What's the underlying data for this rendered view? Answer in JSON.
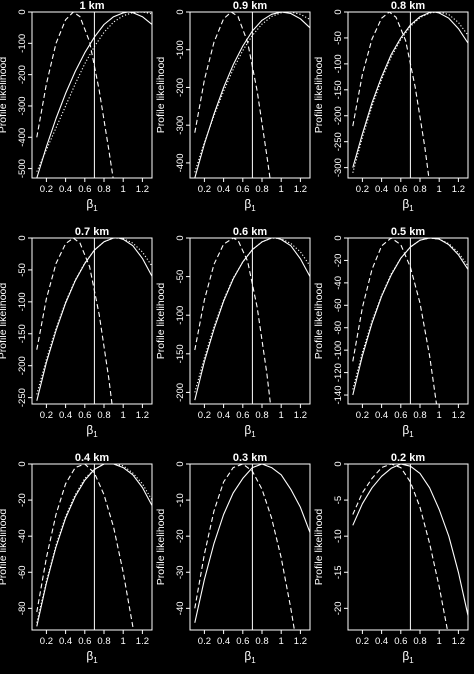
{
  "chart_data": [
    {
      "type": "line",
      "title": "1 km",
      "xlabel": "β",
      "xlabel_sub": "1",
      "ylabel": "Profile likelihood",
      "xlim": [
        0.05,
        1.3
      ],
      "ylim": [
        -530,
        0
      ],
      "xticks": [
        0.2,
        0.4,
        0.6,
        0.8,
        1.0,
        1.2
      ],
      "yticks": [
        0,
        -100,
        -200,
        -300,
        -400,
        -500
      ],
      "vline": 0.7,
      "series": [
        {
          "style": "dashed",
          "x": [
            0.1,
            0.2,
            0.3,
            0.4,
            0.48,
            0.55,
            0.65,
            0.75,
            0.85,
            0.95
          ],
          "values": [
            -400,
            -230,
            -100,
            -25,
            0,
            -15,
            -95,
            -250,
            -440,
            -640
          ]
        },
        {
          "style": "solid",
          "x": [
            0.1,
            0.2,
            0.3,
            0.4,
            0.5,
            0.6,
            0.7,
            0.8,
            0.9,
            1.0,
            1.05,
            1.1,
            1.2,
            1.3
          ],
          "values": [
            -530,
            -430,
            -340,
            -260,
            -190,
            -130,
            -80,
            -40,
            -15,
            -3,
            0,
            -2,
            -15,
            -40
          ]
        },
        {
          "style": "dotted",
          "x": [
            0.1,
            0.2,
            0.3,
            0.4,
            0.5,
            0.6,
            0.7,
            0.8,
            0.9,
            1.0,
            1.1,
            1.2,
            1.3
          ],
          "values": [
            -510,
            -440,
            -370,
            -300,
            -230,
            -165,
            -110,
            -65,
            -32,
            -12,
            -2,
            0,
            -6
          ]
        }
      ]
    },
    {
      "type": "line",
      "title": "0.9 km",
      "xlabel": "β",
      "xlabel_sub": "1",
      "ylabel": "Profile likelihood",
      "xlim": [
        0.05,
        1.3
      ],
      "ylim": [
        -440,
        0
      ],
      "xticks": [
        0.2,
        0.4,
        0.6,
        0.8,
        1.0,
        1.2
      ],
      "yticks": [
        0,
        -100,
        -200,
        -300,
        -400
      ],
      "vline": 0.7,
      "series": [
        {
          "style": "dashed",
          "x": [
            0.1,
            0.2,
            0.3,
            0.4,
            0.48,
            0.55,
            0.65,
            0.75,
            0.85,
            0.95
          ],
          "values": [
            -320,
            -180,
            -80,
            -18,
            0,
            -12,
            -80,
            -210,
            -380,
            -560
          ]
        },
        {
          "style": "solid",
          "x": [
            0.1,
            0.2,
            0.3,
            0.4,
            0.5,
            0.6,
            0.7,
            0.8,
            0.9,
            1.0,
            1.1,
            1.2,
            1.3
          ],
          "values": [
            -440,
            -350,
            -270,
            -200,
            -140,
            -90,
            -50,
            -22,
            -6,
            0,
            -4,
            -18,
            -42
          ]
        },
        {
          "style": "dotted",
          "x": [
            0.1,
            0.2,
            0.3,
            0.4,
            0.5,
            0.6,
            0.7,
            0.8,
            0.9,
            1.0,
            1.1,
            1.2,
            1.3
          ],
          "values": [
            -425,
            -345,
            -275,
            -210,
            -152,
            -102,
            -62,
            -32,
            -12,
            -2,
            0,
            -6,
            -20
          ]
        }
      ]
    },
    {
      "type": "line",
      "title": "0.8 km",
      "xlabel": "β",
      "xlabel_sub": "1",
      "ylabel": "Profile likelihood",
      "xlim": [
        0.05,
        1.3
      ],
      "ylim": [
        -320,
        0
      ],
      "xticks": [
        0.2,
        0.4,
        0.6,
        0.8,
        1.0,
        1.2
      ],
      "yticks": [
        0,
        -50,
        -100,
        -150,
        -200,
        -250,
        -300
      ],
      "vline": 0.7,
      "series": [
        {
          "style": "dashed",
          "x": [
            0.1,
            0.2,
            0.3,
            0.4,
            0.48,
            0.55,
            0.65,
            0.75,
            0.85,
            0.95
          ],
          "values": [
            -220,
            -120,
            -52,
            -12,
            0,
            -10,
            -55,
            -145,
            -260,
            -400
          ]
        },
        {
          "style": "solid",
          "x": [
            0.1,
            0.2,
            0.3,
            0.4,
            0.5,
            0.6,
            0.7,
            0.8,
            0.9,
            0.95,
            1.0,
            1.1,
            1.2,
            1.3
          ],
          "values": [
            -300,
            -235,
            -175,
            -125,
            -82,
            -50,
            -25,
            -9,
            -1,
            0,
            -2,
            -12,
            -32,
            -60
          ]
        },
        {
          "style": "dotted",
          "x": [
            0.1,
            0.2,
            0.3,
            0.4,
            0.5,
            0.6,
            0.7,
            0.8,
            0.9,
            1.0,
            1.1,
            1.2,
            1.3
          ],
          "values": [
            -310,
            -242,
            -182,
            -130,
            -87,
            -53,
            -28,
            -11,
            -2,
            0,
            -5,
            -20,
            -45
          ]
        }
      ]
    },
    {
      "type": "line",
      "title": "0.7 km",
      "xlabel": "β",
      "xlabel_sub": "1",
      "ylabel": "Profile likelihood",
      "xlim": [
        0.05,
        1.3
      ],
      "ylim": [
        -260,
        0
      ],
      "xticks": [
        0.2,
        0.4,
        0.6,
        0.8,
        1.0,
        1.2
      ],
      "yticks": [
        0,
        -50,
        -100,
        -150,
        -200,
        -250
      ],
      "vline": 0.7,
      "series": [
        {
          "style": "dashed",
          "x": [
            0.1,
            0.2,
            0.3,
            0.4,
            0.48,
            0.55,
            0.65,
            0.75,
            0.85,
            0.95
          ],
          "values": [
            -175,
            -95,
            -40,
            -9,
            0,
            -8,
            -45,
            -120,
            -220,
            -340
          ]
        },
        {
          "style": "solid",
          "x": [
            0.1,
            0.2,
            0.3,
            0.4,
            0.5,
            0.6,
            0.7,
            0.8,
            0.9,
            0.95,
            1.0,
            1.1,
            1.2,
            1.3
          ],
          "values": [
            -255,
            -195,
            -145,
            -102,
            -67,
            -40,
            -19,
            -6,
            0,
            0,
            -2,
            -12,
            -32,
            -60
          ]
        },
        {
          "style": "dotted",
          "x": [
            0.1,
            0.2,
            0.3,
            0.4,
            0.5,
            0.6,
            0.7,
            0.8,
            0.9,
            1.0,
            1.1,
            1.2,
            1.3
          ],
          "values": [
            -245,
            -190,
            -142,
            -100,
            -66,
            -39,
            -19,
            -6,
            0,
            -1,
            -8,
            -22,
            -44
          ]
        }
      ]
    },
    {
      "type": "line",
      "title": "0.6 km",
      "xlabel": "β",
      "xlabel_sub": "1",
      "ylabel": "Profile likelihood",
      "xlim": [
        0.05,
        1.3
      ],
      "ylim": [
        -215,
        0
      ],
      "xticks": [
        0.2,
        0.4,
        0.6,
        0.8,
        1.0,
        1.2
      ],
      "yticks": [
        0,
        -50,
        -100,
        -150,
        -200
      ],
      "vline": 0.7,
      "series": [
        {
          "style": "dashed",
          "x": [
            0.1,
            0.2,
            0.3,
            0.4,
            0.5,
            0.55,
            0.65,
            0.75,
            0.85,
            0.95
          ],
          "values": [
            -145,
            -80,
            -34,
            -8,
            0,
            -3,
            -30,
            -90,
            -175,
            -280
          ]
        },
        {
          "style": "solid",
          "x": [
            0.1,
            0.2,
            0.3,
            0.4,
            0.5,
            0.6,
            0.7,
            0.8,
            0.9,
            0.95,
            1.0,
            1.1,
            1.2,
            1.3
          ],
          "values": [
            -210,
            -160,
            -118,
            -82,
            -53,
            -31,
            -15,
            -5,
            0,
            0,
            -2,
            -10,
            -27,
            -50
          ]
        },
        {
          "style": "dotted",
          "x": [
            0.1,
            0.2,
            0.3,
            0.4,
            0.5,
            0.6,
            0.7,
            0.8,
            0.9,
            1.0,
            1.1,
            1.2,
            1.3
          ],
          "values": [
            -200,
            -155,
            -115,
            -80,
            -52,
            -31,
            -15,
            -5,
            0,
            -1,
            -7,
            -18,
            -36
          ]
        }
      ]
    },
    {
      "type": "line",
      "title": "0.5 km",
      "xlabel": "β",
      "xlabel_sub": "1",
      "ylabel": "Profile likelihood",
      "xlim": [
        0.05,
        1.3
      ],
      "ylim": [
        -148,
        0
      ],
      "xticks": [
        0.2,
        0.4,
        0.6,
        0.8,
        1.0,
        1.2
      ],
      "yticks": [
        0,
        -20,
        -40,
        -60,
        -80,
        -100,
        -120,
        -140
      ],
      "vline": 0.7,
      "series": [
        {
          "style": "dashed",
          "x": [
            0.1,
            0.2,
            0.3,
            0.4,
            0.5,
            0.6,
            0.7,
            0.8,
            0.9,
            1.0
          ],
          "values": [
            -110,
            -62,
            -28,
            -7,
            0,
            -6,
            -26,
            -58,
            -105,
            -165
          ]
        },
        {
          "style": "solid",
          "x": [
            0.1,
            0.2,
            0.3,
            0.4,
            0.5,
            0.6,
            0.7,
            0.8,
            0.9,
            1.0,
            1.1,
            1.2,
            1.3
          ],
          "values": [
            -140,
            -105,
            -76,
            -52,
            -33,
            -18,
            -8,
            -2,
            0,
            -1,
            -6,
            -15,
            -28
          ]
        },
        {
          "style": "dotted",
          "x": [
            0.1,
            0.2,
            0.3,
            0.4,
            0.5,
            0.6,
            0.7,
            0.8,
            0.9,
            1.0,
            1.1,
            1.2,
            1.3
          ],
          "values": [
            -135,
            -102,
            -74,
            -51,
            -32,
            -18,
            -8,
            -2,
            0,
            -1,
            -5,
            -13,
            -25
          ]
        }
      ]
    },
    {
      "type": "line",
      "title": "0.4 km",
      "xlabel": "β",
      "xlabel_sub": "1",
      "ylabel": "Profile likelihood",
      "xlim": [
        0.05,
        1.3
      ],
      "ylim": [
        -92,
        0
      ],
      "xticks": [
        0.2,
        0.4,
        0.6,
        0.8,
        1.0,
        1.2
      ],
      "yticks": [
        0,
        -20,
        -40,
        -60,
        -80
      ],
      "vline": 0.7,
      "series": [
        {
          "style": "dashed",
          "x": [
            0.1,
            0.2,
            0.3,
            0.4,
            0.5,
            0.6,
            0.7,
            0.8,
            0.9,
            1.0,
            1.1,
            1.2
          ],
          "values": [
            -82,
            -52,
            -28,
            -11,
            -2,
            0,
            -5,
            -17,
            -35,
            -60,
            -90,
            -125
          ]
        },
        {
          "style": "solid",
          "x": [
            0.1,
            0.2,
            0.3,
            0.4,
            0.5,
            0.6,
            0.7,
            0.8,
            0.9,
            1.0,
            1.1,
            1.2,
            1.3
          ],
          "values": [
            -90,
            -66,
            -46,
            -30,
            -18,
            -9,
            -3,
            0,
            0,
            -2,
            -6,
            -13,
            -23
          ]
        },
        {
          "style": "dotted",
          "x": [
            0.1,
            0.2,
            0.3,
            0.4,
            0.5,
            0.6,
            0.7,
            0.8,
            0.9,
            1.0,
            1.1,
            1.2,
            1.3
          ],
          "values": [
            -88,
            -65,
            -45,
            -29,
            -17,
            -8,
            -3,
            0,
            0,
            -1,
            -5,
            -11,
            -20
          ]
        }
      ]
    },
    {
      "type": "line",
      "title": "0.3 km",
      "xlabel": "β",
      "xlabel_sub": "1",
      "ylabel": "Profile likelihood",
      "xlim": [
        0.05,
        1.3
      ],
      "ylim": [
        -46,
        0
      ],
      "xticks": [
        0.2,
        0.4,
        0.6,
        0.8,
        1.0,
        1.2
      ],
      "yticks": [
        0,
        -10,
        -20,
        -30,
        -40
      ],
      "vline": 0.7,
      "series": [
        {
          "style": "dashed",
          "x": [
            0.1,
            0.2,
            0.3,
            0.4,
            0.5,
            0.6,
            0.7,
            0.8,
            0.9,
            1.0,
            1.1,
            1.2
          ],
          "values": [
            -40,
            -25,
            -13,
            -5,
            -1,
            0,
            -2,
            -7,
            -15,
            -26,
            -40,
            -56
          ]
        },
        {
          "style": "solid",
          "x": [
            0.1,
            0.2,
            0.3,
            0.4,
            0.5,
            0.6,
            0.7,
            0.8,
            0.9,
            1.0,
            1.1,
            1.2,
            1.3
          ],
          "values": [
            -44,
            -32,
            -22,
            -14,
            -8,
            -4,
            -1,
            0,
            -1,
            -3,
            -7,
            -12,
            -19
          ]
        }
      ]
    },
    {
      "type": "line",
      "title": "0.2 km",
      "xlabel": "β",
      "xlabel_sub": "1",
      "ylabel": "Profile likelihood",
      "xlim": [
        0.05,
        1.3
      ],
      "ylim": [
        -23,
        0
      ],
      "xticks": [
        0.2,
        0.4,
        0.6,
        0.8,
        1.0,
        1.2
      ],
      "yticks": [
        0,
        -5,
        -10,
        -15,
        -20
      ],
      "vline": 0.7,
      "series": [
        {
          "style": "dashed",
          "x": [
            0.1,
            0.2,
            0.3,
            0.4,
            0.5,
            0.6,
            0.7,
            0.8,
            0.9,
            1.0,
            1.1
          ],
          "values": [
            -7,
            -4,
            -2,
            -0.5,
            0,
            -0.5,
            -2.5,
            -6,
            -11,
            -17,
            -24
          ]
        },
        {
          "style": "solid",
          "x": [
            0.1,
            0.2,
            0.3,
            0.4,
            0.5,
            0.6,
            0.7,
            0.8,
            0.9,
            1.0,
            1.1,
            1.2,
            1.3
          ],
          "values": [
            -8.5,
            -5.5,
            -3.3,
            -1.7,
            -0.6,
            0,
            -0.3,
            -1.3,
            -3.3,
            -6.3,
            -10,
            -15,
            -21
          ]
        }
      ]
    }
  ]
}
